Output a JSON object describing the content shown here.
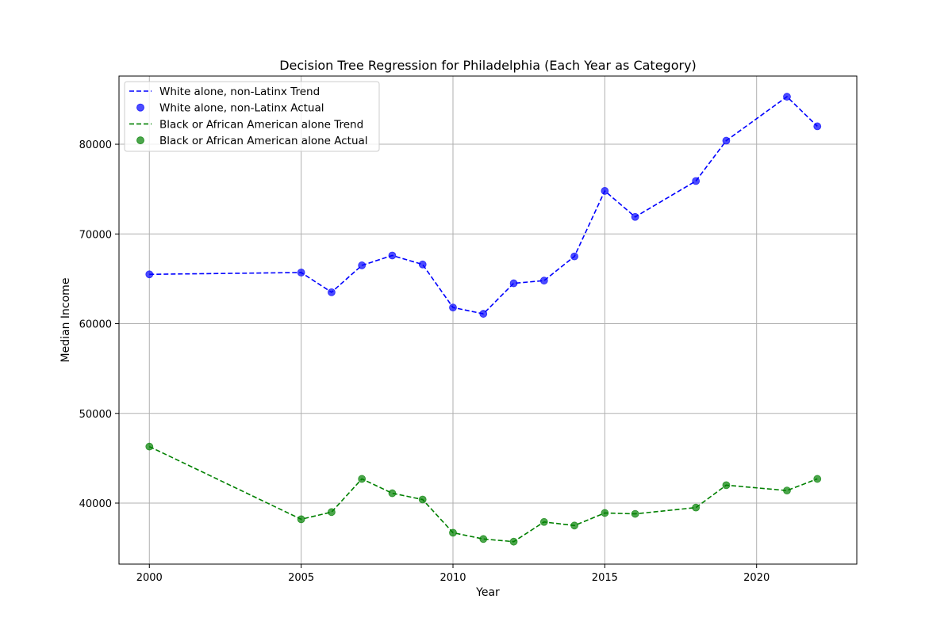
{
  "chart_data": {
    "type": "line",
    "title": "Decision Tree Regression for Philadelphia (Each Year as Category)",
    "xlabel": "Year",
    "ylabel": "Median Income",
    "xlim": [
      1999,
      2023.3
    ],
    "ylim": [
      33200,
      87600
    ],
    "xticks": [
      2000,
      2005,
      2010,
      2015,
      2020
    ],
    "yticks": [
      40000,
      50000,
      60000,
      70000,
      80000
    ],
    "grid": true,
    "legend_position": "top-left",
    "x": [
      2000,
      2005,
      2006,
      2007,
      2008,
      2009,
      2010,
      2011,
      2012,
      2013,
      2014,
      2015,
      2016,
      2018,
      2019,
      2021,
      2022
    ],
    "series": [
      {
        "name": "White alone, non-Latinx Trend",
        "kind": "line",
        "style": "dashed",
        "color": "#0000ff",
        "values": [
          65500,
          65700,
          63500,
          66500,
          67600,
          66600,
          61800,
          61100,
          64500,
          64800,
          67500,
          74800,
          71900,
          75900,
          80400,
          85300,
          82000
        ]
      },
      {
        "name": "White alone, non-Latinx Actual",
        "kind": "scatter",
        "color": "#0000ff",
        "values": [
          65500,
          65700,
          63500,
          66500,
          67600,
          66600,
          61800,
          61100,
          64500,
          64800,
          67500,
          74800,
          71900,
          75900,
          80400,
          85300,
          82000
        ]
      },
      {
        "name": "Black or African American alone Trend",
        "kind": "line",
        "style": "dashed",
        "color": "#008000",
        "values": [
          46300,
          38200,
          39000,
          42700,
          41100,
          40400,
          36700,
          36000,
          35700,
          37900,
          37500,
          38900,
          38800,
          39500,
          42000,
          41400,
          42700
        ]
      },
      {
        "name": "Black or African American alone Actual",
        "kind": "scatter",
        "color": "#008000",
        "values": [
          46300,
          38200,
          39000,
          42700,
          41100,
          40400,
          36700,
          36000,
          35700,
          37900,
          37500,
          38900,
          38800,
          39500,
          42000,
          41400,
          42700
        ]
      }
    ]
  }
}
